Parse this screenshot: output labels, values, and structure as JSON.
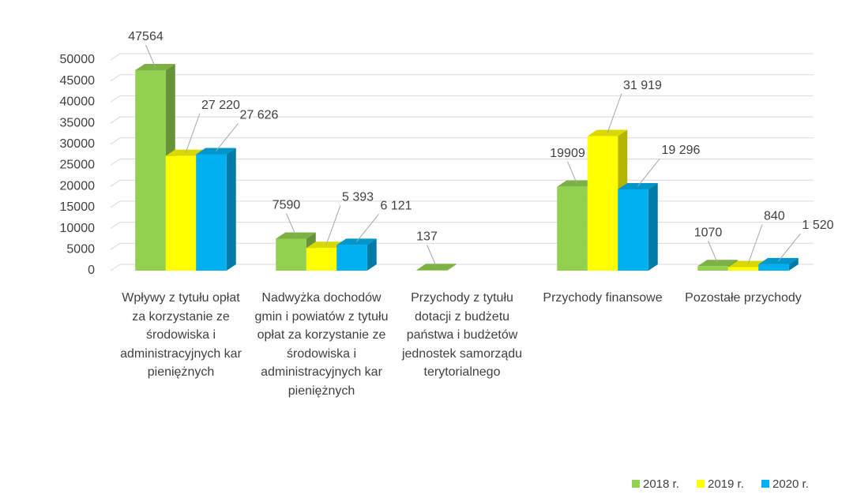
{
  "chart_data": {
    "type": "bar3d",
    "categories": [
      "Wpływy z tytułu opłat za korzystanie ze środowiska i administracyjnych kar pieniężnych",
      "Nadwyżka dochodów gmin i powiatów z tytułu opłat za korzystanie ze środowiska i administracyjnych kar pieniężnych",
      "Przychody z tytułu dotacji z budżetu państwa i budżetów jednostek samorządu terytorialnego",
      "Przychody finansowe",
      "Pozostałe przychody"
    ],
    "series": [
      {
        "name": "2018 r.",
        "color": "#92d050",
        "values": [
          47564,
          7590,
          137,
          19909,
          1070
        ]
      },
      {
        "name": "2019 r.",
        "color": "#ffff00",
        "values": [
          27220,
          5393,
          null,
          31919,
          840
        ],
        "value_labels": [
          "27 220",
          "5 393",
          null,
          "31 919",
          "840"
        ]
      },
      {
        "name": "2020 r.",
        "color": "#00b0f0",
        "values": [
          27626,
          6121,
          null,
          19296,
          1520
        ],
        "value_labels": [
          "27 626",
          "6 121",
          null,
          "19 296",
          "1 520"
        ]
      }
    ],
    "ylim": [
      0,
      50000
    ],
    "yticks": [
      0,
      5000,
      10000,
      15000,
      20000,
      25000,
      30000,
      35000,
      40000,
      45000,
      50000
    ],
    "grid": true,
    "legend": "bottom-right"
  }
}
